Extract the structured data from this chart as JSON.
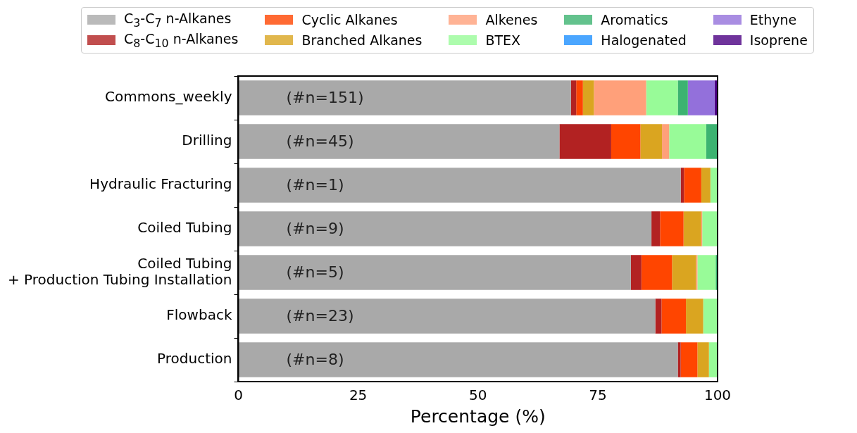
{
  "chart_data": {
    "type": "bar",
    "orientation": "horizontal",
    "stacked": true,
    "legend": "top",
    "grid": false,
    "xlabel": "Percentage (%)",
    "xlim": [
      0,
      100
    ],
    "xticks": [
      0,
      25,
      50,
      75,
      100
    ],
    "categories": [
      "Commons_weekly",
      "Drilling",
      "Hydraulic Fracturing",
      "Coiled Tubing",
      "Coiled Tubing\n+ Production Tubing Installation",
      "Flowback",
      "Production"
    ],
    "series": [
      {
        "name": "C$_{3}$-C$_{7}$ n-Alkanes",
        "color": "#a9a9a9",
        "values": [
          69.4,
          67.0,
          92.3,
          86.2,
          81.9,
          87.0,
          91.7
        ]
      },
      {
        "name": "C$_{8}$-C$_{10}$ n-Alkanes",
        "color": "#b22222",
        "values": [
          1.1,
          10.8,
          0.7,
          1.8,
          2.2,
          1.3,
          0.6
        ]
      },
      {
        "name": "Cyclic Alkanes",
        "color": "#ff4500",
        "values": [
          1.4,
          6.1,
          3.6,
          4.9,
          6.4,
          5.1,
          3.5
        ]
      },
      {
        "name": "Branched Alkanes",
        "color": "#daa520",
        "values": [
          2.3,
          4.5,
          1.9,
          3.7,
          5.0,
          3.6,
          2.4
        ]
      },
      {
        "name": "Alkenes",
        "color": "#ffa07a",
        "values": [
          10.9,
          1.5,
          0,
          0.2,
          0.3,
          0,
          0
        ]
      },
      {
        "name": "BTEX",
        "color": "#98fb98",
        "values": [
          6.6,
          7.7,
          1.5,
          3.2,
          3.8,
          3.0,
          1.8
        ]
      },
      {
        "name": "Aromatics",
        "color": "#3cb371",
        "values": [
          2.1,
          2.4,
          0,
          0,
          0.4,
          0,
          0
        ]
      },
      {
        "name": "Halogenated",
        "color": "#1e90ff",
        "values": [
          0,
          0,
          0,
          0,
          0,
          0,
          0
        ]
      },
      {
        "name": "Ethyne",
        "color": "#9370db",
        "values": [
          5.6,
          null,
          0,
          0,
          0,
          0,
          0
        ]
      },
      {
        "name": "Isoprene",
        "color": "#4b0082",
        "values": [
          0.6,
          0,
          0,
          0,
          0,
          0,
          0
        ]
      }
    ],
    "annotations": [
      {
        "text": "(#n=151)",
        "y": "Commons_weekly"
      },
      {
        "text": "(#n=45)",
        "y": "Drilling"
      },
      {
        "text": "(#n=1)",
        "y": "Hydraulic Fracturing"
      },
      {
        "text": "(#n=9)",
        "y": "Coiled Tubing"
      },
      {
        "text": "(#n=5)",
        "y": "Coiled Tubing\n+ Production Tubing Installation"
      },
      {
        "text": "(#n=23)",
        "y": "Flowback"
      },
      {
        "text": "(#n=8)",
        "y": "Production"
      }
    ]
  }
}
